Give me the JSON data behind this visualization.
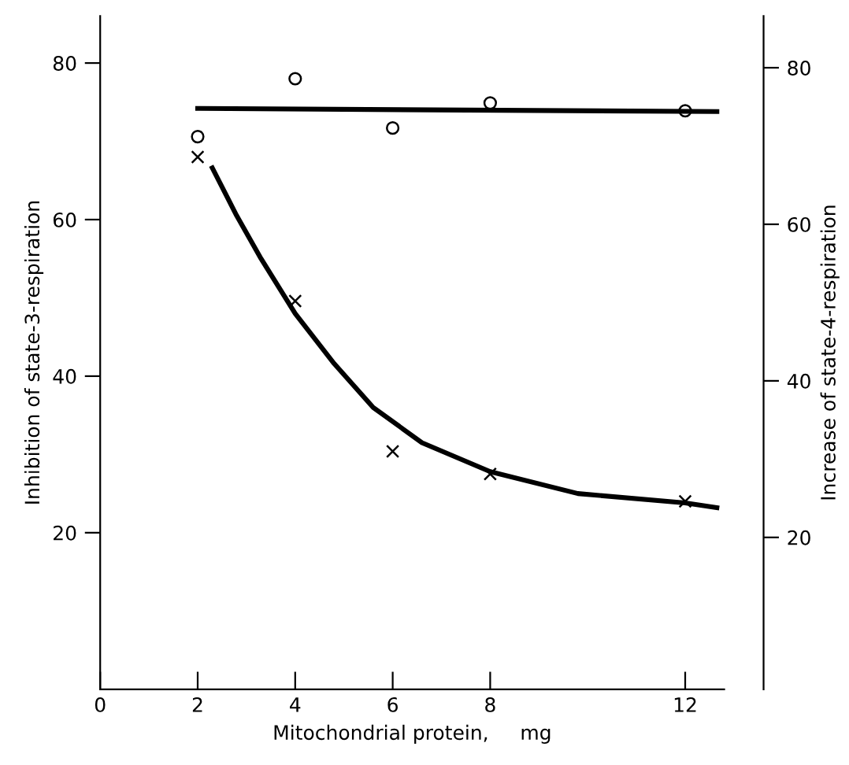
{
  "chart_data": {
    "type": "scatter",
    "xlabel": "Mitochondrial protein,     mg",
    "ylabel": "Inhibition of state-3-respiration",
    "y2label": "Increase of state-4-respiration",
    "xlim": [
      0,
      12.8
    ],
    "xticks": [
      0,
      2,
      4,
      6,
      8,
      12
    ],
    "ylim": [
      0,
      86
    ],
    "yticks": [
      20,
      40,
      60,
      80
    ],
    "y2lim": [
      0.6,
      86.6
    ],
    "y2ticks": [
      20,
      40,
      60,
      80
    ],
    "grid": false,
    "legend": false,
    "series": [
      {
        "marker": "circle",
        "color": "#000000",
        "axis": "y2",
        "x": [
          2,
          4,
          6,
          8,
          12
        ],
        "values": [
          71.2,
          78.6,
          72.3,
          75.5,
          74.5
        ]
      },
      {
        "marker": "cross",
        "color": "#000000",
        "x": [
          2,
          4,
          6,
          8,
          12
        ],
        "values": [
          68,
          49.6,
          30.4,
          27.5,
          24
        ]
      },
      {
        "type": "line",
        "marker": "none",
        "color": "#000000",
        "axis": "y2",
        "x": [
          2,
          12.65
        ],
        "values": [
          74.8,
          74.4
        ]
      },
      {
        "type": "line",
        "marker": "none",
        "color": "#000000",
        "x": [
          2.3,
          2.8,
          3.3,
          4,
          4.8,
          5.6,
          6.6,
          8,
          9.8,
          12,
          12.65
        ],
        "values": [
          66.6,
          60.5,
          55,
          48,
          41.6,
          36,
          31.5,
          27.8,
          25,
          23.8,
          23.2
        ]
      }
    ]
  }
}
